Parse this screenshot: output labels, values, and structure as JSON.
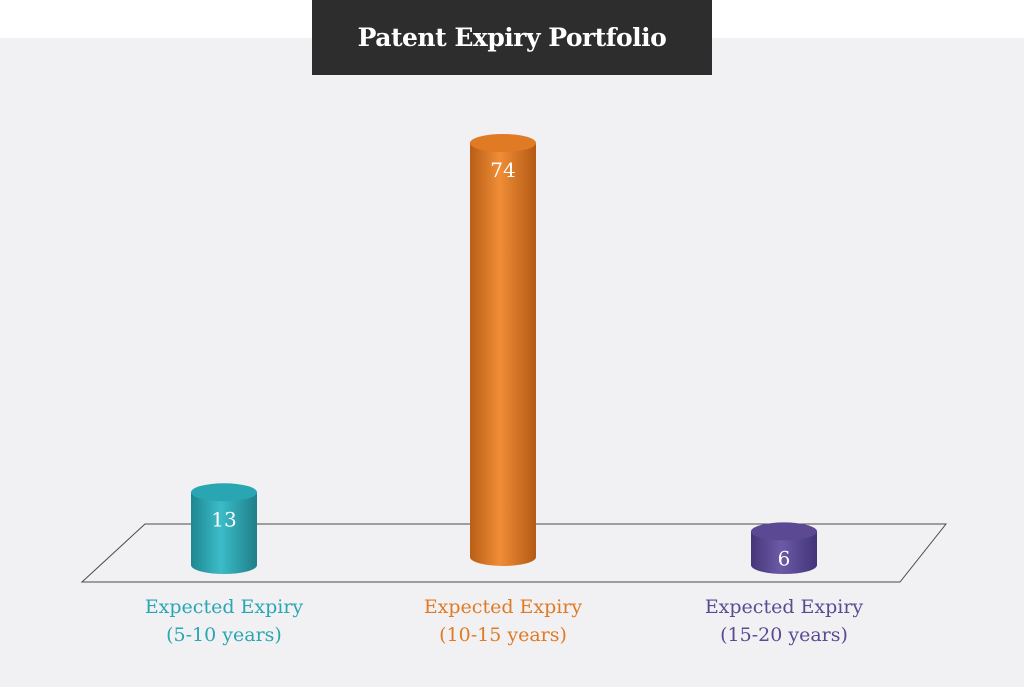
{
  "chart_data": {
    "type": "bar",
    "title": "Patent Expiry Portfolio",
    "categories": [
      [
        "Expected Expiry",
        "(5-10 years)"
      ],
      [
        "Expected Expiry",
        "(10-15 years)"
      ],
      [
        "Expected Expiry",
        "(15-20 years)"
      ]
    ],
    "values": [
      13,
      74,
      6
    ],
    "colors": [
      "#2aa6b2",
      "#e07a24",
      "#5b4a93"
    ],
    "value_label_color": "#ffffff",
    "ylim": [
      0,
      74
    ],
    "grid": false,
    "style": "3d-cylinder"
  }
}
